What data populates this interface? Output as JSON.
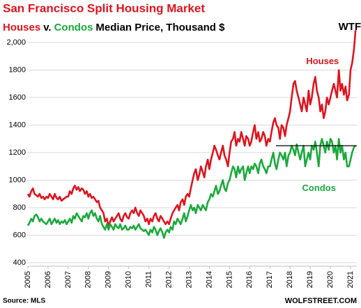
{
  "chart_data": {
    "type": "line",
    "title": "San Francisco Split Housing Market",
    "title_color": "#e0141e",
    "subtitle": [
      {
        "text": "Houses",
        "color": "#e0141e"
      },
      {
        "text": "v.",
        "color": "#000000"
      },
      {
        "text": "Condos",
        "color": "#1aaa3c"
      },
      {
        "text": "Median Price, Thousand $",
        "color": "#000000"
      }
    ],
    "annotations": [
      {
        "text": "WTF",
        "x": 2020.4,
        "y": 2110,
        "color": "#000000"
      },
      {
        "text": "Houses",
        "x": 2018.8,
        "y": 1860,
        "color": "#e0141e"
      },
      {
        "text": "Condos",
        "x": 2018.6,
        "y": 940,
        "color": "#1aaa3c"
      }
    ],
    "source": "Source: MLS",
    "credit": "WOLFSTREET.COM",
    "reference_line": {
      "y": 1250,
      "x": [
        2017.3,
        2021.31
      ],
      "color": "#000000"
    },
    "xlim": [
      2005,
      2021.31
    ],
    "xticks": [
      2005,
      2006,
      2007,
      2008,
      2009,
      2010,
      2011,
      2012,
      2013,
      2014,
      2015,
      2016,
      2017,
      2018,
      2019,
      2020,
      2021
    ],
    "ylim": [
      400,
      2150
    ],
    "yticks": [
      400,
      600,
      800,
      1000,
      1200,
      1400,
      1600,
      1800,
      {
        "value": 2000,
        "label": "2,000"
      }
    ],
    "grid": true,
    "x": [
      2005,
      2005.08,
      2005.17,
      2005.25,
      2005.33,
      2005.42,
      2005.5,
      2005.58,
      2005.67,
      2005.75,
      2005.83,
      2005.92,
      2006,
      2006.08,
      2006.17,
      2006.25,
      2006.33,
      2006.42,
      2006.5,
      2006.58,
      2006.67,
      2006.75,
      2006.83,
      2006.92,
      2007,
      2007.08,
      2007.17,
      2007.25,
      2007.33,
      2007.42,
      2007.5,
      2007.58,
      2007.67,
      2007.75,
      2007.83,
      2007.92,
      2008,
      2008.08,
      2008.17,
      2008.25,
      2008.33,
      2008.42,
      2008.5,
      2008.58,
      2008.67,
      2008.75,
      2008.83,
      2008.92,
      2009,
      2009.08,
      2009.17,
      2009.25,
      2009.33,
      2009.42,
      2009.5,
      2009.58,
      2009.67,
      2009.75,
      2009.83,
      2009.92,
      2010,
      2010.08,
      2010.17,
      2010.25,
      2010.33,
      2010.42,
      2010.5,
      2010.58,
      2010.67,
      2010.75,
      2010.83,
      2010.92,
      2011,
      2011.08,
      2011.17,
      2011.25,
      2011.33,
      2011.42,
      2011.5,
      2011.58,
      2011.67,
      2011.75,
      2011.83,
      2011.92,
      2012,
      2012.08,
      2012.17,
      2012.25,
      2012.33,
      2012.42,
      2012.5,
      2012.58,
      2012.67,
      2012.75,
      2012.83,
      2012.92,
      2013,
      2013.08,
      2013.17,
      2013.25,
      2013.33,
      2013.42,
      2013.5,
      2013.58,
      2013.67,
      2013.75,
      2013.83,
      2013.92,
      2014,
      2014.08,
      2014.17,
      2014.25,
      2014.33,
      2014.42,
      2014.5,
      2014.58,
      2014.67,
      2014.75,
      2014.83,
      2014.92,
      2015,
      2015.08,
      2015.17,
      2015.25,
      2015.33,
      2015.42,
      2015.5,
      2015.58,
      2015.67,
      2015.75,
      2015.83,
      2015.92,
      2016,
      2016.08,
      2016.17,
      2016.25,
      2016.33,
      2016.42,
      2016.5,
      2016.58,
      2016.67,
      2016.75,
      2016.83,
      2016.92,
      2017,
      2017.08,
      2017.17,
      2017.25,
      2017.33,
      2017.42,
      2017.5,
      2017.58,
      2017.67,
      2017.75,
      2017.83,
      2017.92,
      2018,
      2018.08,
      2018.17,
      2018.25,
      2018.33,
      2018.42,
      2018.5,
      2018.58,
      2018.67,
      2018.75,
      2018.83,
      2018.92,
      2019,
      2019.08,
      2019.17,
      2019.25,
      2019.33,
      2019.42,
      2019.5,
      2019.58,
      2019.67,
      2019.75,
      2019.83,
      2019.92,
      2020,
      2020.08,
      2020.17,
      2020.25,
      2020.33,
      2020.42,
      2020.5,
      2020.58,
      2020.67,
      2020.75,
      2020.83,
      2020.92,
      2021,
      2021.08,
      2021.17,
      2021.25
    ],
    "series": [
      {
        "name": "Houses",
        "color": "#e0141e",
        "values": [
          900,
          880,
          920,
          940,
          900,
          890,
          880,
          900,
          870,
          880,
          860,
          880,
          870,
          900,
          880,
          860,
          900,
          870,
          860,
          880,
          850,
          860,
          870,
          880,
          880,
          920,
          900,
          940,
          960,
          930,
          950,
          920,
          940,
          930,
          900,
          920,
          880,
          900,
          870,
          880,
          860,
          840,
          850,
          800,
          780,
          760,
          700,
          720,
          660,
          700,
          730,
          700,
          720,
          740,
          760,
          720,
          700,
          740,
          760,
          730,
          720,
          760,
          780,
          760,
          800,
          760,
          740,
          780,
          760,
          740,
          700,
          720,
          680,
          720,
          700,
          740,
          760,
          720,
          700,
          740,
          720,
          700,
          680,
          700,
          680,
          720,
          760,
          780,
          800,
          820,
          780,
          840,
          860,
          820,
          880,
          900,
          880,
          940,
          1000,
          1050,
          1080,
          1000,
          1040,
          1100,
          1060,
          1020,
          1100,
          1150,
          1080,
          1150,
          1200,
          1250,
          1220,
          1180,
          1150,
          1200,
          1250,
          1180,
          1150,
          1100,
          1200,
          1280,
          1300,
          1350,
          1250,
          1300,
          1280,
          1350,
          1300,
          1250,
          1320,
          1300,
          1250,
          1280,
          1350,
          1400,
          1300,
          1350,
          1280,
          1300,
          1350,
          1320,
          1250,
          1300,
          1280,
          1350,
          1420,
          1450,
          1400,
          1380,
          1300,
          1400,
          1380,
          1320,
          1400,
          1450,
          1500,
          1600,
          1700,
          1720,
          1650,
          1600,
          1550,
          1500,
          1600,
          1550,
          1500,
          1650,
          1550,
          1600,
          1700,
          1750,
          1650,
          1600,
          1500,
          1550,
          1450,
          1500,
          1600,
          1550,
          1600,
          1650,
          1700,
          1650,
          1600,
          1800,
          1650,
          1700,
          1620,
          1680,
          1580,
          1620,
          1800,
          1850,
          1950,
          2090
        ]
      },
      {
        "name": "Condos",
        "color": "#1aaa3c",
        "values": [
          670,
          690,
          720,
          700,
          740,
          750,
          730,
          700,
          720,
          700,
          690,
          680,
          700,
          720,
          680,
          700,
          720,
          690,
          710,
          680,
          700,
          690,
          710,
          680,
          700,
          720,
          690,
          740,
          720,
          760,
          740,
          720,
          700,
          740,
          730,
          760,
          720,
          760,
          780,
          740,
          760,
          720,
          700,
          740,
          680,
          660,
          640,
          680,
          640,
          680,
          660,
          640,
          680,
          660,
          650,
          680,
          640,
          650,
          670,
          640,
          640,
          660,
          650,
          670,
          640,
          660,
          680,
          650,
          640,
          630,
          640,
          620,
          600,
          640,
          620,
          660,
          640,
          600,
          630,
          650,
          620,
          580,
          620,
          640,
          620,
          660,
          640,
          700,
          680,
          720,
          700,
          680,
          720,
          760,
          700,
          740,
          780,
          820,
          780,
          800,
          760,
          820,
          800,
          780,
          820,
          800,
          780,
          840,
          860,
          900,
          880,
          920,
          960,
          900,
          920,
          960,
          1000,
          940,
          920,
          980,
          1000,
          1050,
          1100,
          1080,
          1020,
          1100,
          1050,
          1080,
          1100,
          1000,
          1050,
          1100,
          1050,
          1100,
          1080,
          1120,
          1100,
          1050,
          1120,
          1150,
          1100,
          1080,
          1050,
          1100,
          1100,
          1150,
          1200,
          1120,
          1080,
          1150,
          1200,
          1180,
          1150,
          1200,
          1100,
          1180,
          1200,
          1250,
          1220,
          1180,
          1260,
          1200,
          1150,
          1200,
          1250,
          1100,
          1150,
          1200,
          1150,
          1250,
          1220,
          1280,
          1200,
          1100,
          1250,
          1300,
          1250,
          1200,
          1280,
          1220,
          1300,
          1280,
          1200,
          1250,
          1150,
          1300,
          1200,
          1250,
          1150,
          1200,
          1100,
          1100,
          1150,
          1200,
          1240,
          1250
        ]
      }
    ]
  }
}
